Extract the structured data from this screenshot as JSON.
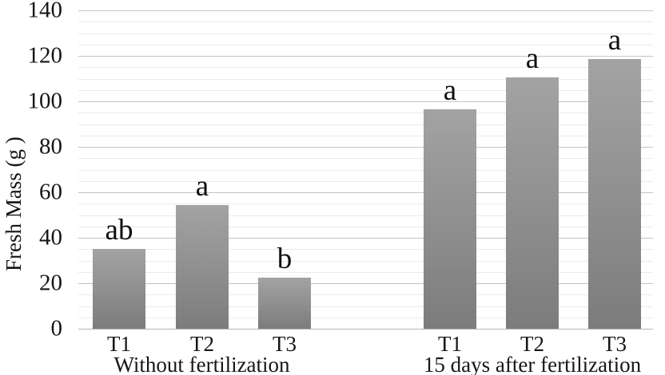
{
  "chart_data": {
    "type": "bar",
    "title": "",
    "xlabel": "",
    "ylabel": "Fresh Mass (g )",
    "ylim": [
      0,
      140
    ],
    "y_major_tick": 20,
    "y_minor_tick": 5,
    "y_tick_labels": [
      "0",
      "20",
      "40",
      "60",
      "80",
      "100",
      "120",
      "140"
    ],
    "grid": "major and minor horizontal gridlines",
    "legend": "none",
    "groups": [
      {
        "label": "Without fertilization",
        "categories": [
          "T1",
          "T2",
          "T3"
        ],
        "values": [
          35,
          54.5,
          22.5
        ],
        "sig_letters": [
          "ab",
          "a",
          "b"
        ]
      },
      {
        "label": "15 days after fertilization",
        "categories": [
          "T1",
          "T2",
          "T3"
        ],
        "values": [
          96.5,
          110.5,
          118.5
        ],
        "sig_letters": [
          "a",
          "a",
          "a"
        ]
      }
    ],
    "colors": {
      "bar_top": "#a3a3a3",
      "bar_bottom": "#7c7c7c",
      "major_gridline": "#c3c3c3",
      "minor_gridline": "#eaeaea",
      "zero_axis_line": "#b3b3b3",
      "text": "#161616",
      "background": "#ffffff"
    }
  }
}
